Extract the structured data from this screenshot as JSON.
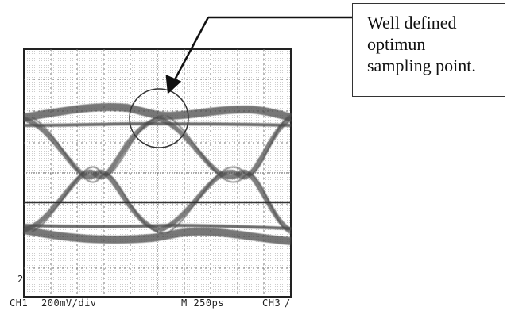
{
  "callout": {
    "lines": [
      "Well defined",
      "optimun",
      "sampling point."
    ]
  },
  "scope": {
    "channel_label": "CH1",
    "volts_per_div": "200mV/div",
    "timebase": "M 250ps",
    "trigger_label": "CH3",
    "trigger_slope_symbol": "/",
    "marker_left": "2"
  },
  "colors": {
    "trace": "#4a4a4a",
    "grid": "#8a8a8a",
    "frame": "#222222",
    "background": "#ffffff"
  }
}
